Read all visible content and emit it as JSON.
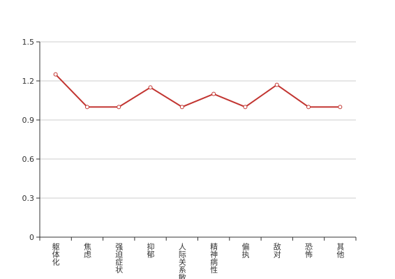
{
  "chart_data": {
    "type": "line",
    "categories": [
      "躯体化",
      "焦虑",
      "强迫症状",
      "抑郁",
      "人际关系敏感",
      "精神病性",
      "偏执",
      "敌对",
      "恐怖",
      "其他"
    ],
    "series": [
      {
        "color": "#c23531",
        "values": [
          1.25,
          1.0,
          1.0,
          1.15,
          1.0,
          1.1,
          1.0,
          1.17,
          1.0,
          1.0
        ]
      }
    ],
    "ylim": [
      0,
      1.5
    ],
    "yticks": [
      0,
      0.3,
      0.6,
      0.9,
      1.2,
      1.5
    ],
    "grid": true
  }
}
